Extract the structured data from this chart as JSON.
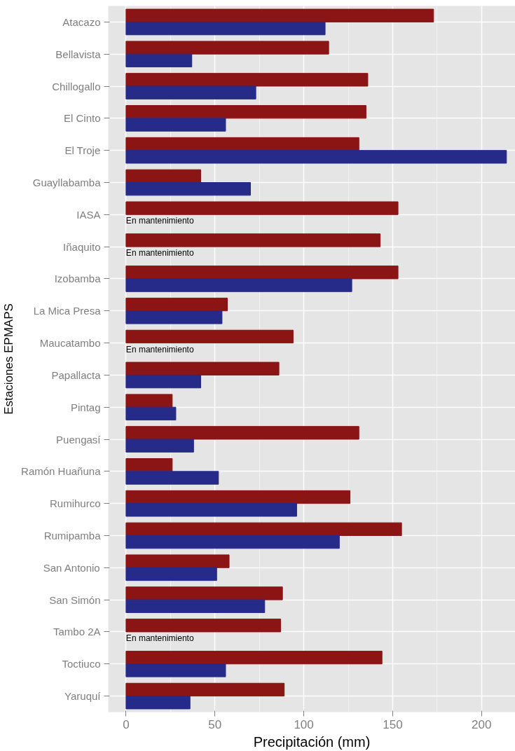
{
  "chart_data": {
    "type": "bar",
    "orientation": "horizontal",
    "xlabel": "Precipitación (mm)",
    "ylabel": "Estaciones EPMAPS",
    "categories": [
      "Atacazo",
      "Bellavista",
      "Chillogallo",
      "El Cinto",
      "El Troje",
      "Guayllabamba",
      "IASA",
      "Iñaquito",
      "Izobamba",
      "La Mica Presa",
      "Maucatambo",
      "Papallacta",
      "Pintag",
      "Puengasí",
      "Ramón Huañuna",
      "Rumihurco",
      "Rumipamba",
      "San Antonio",
      "San Simón",
      "Tambo 2A",
      "Toctiuco",
      "Yaruquí"
    ],
    "series": [
      {
        "color": "#8b1414",
        "values": [
          173,
          114,
          136,
          135,
          131,
          42,
          153,
          143,
          153,
          57,
          94,
          86,
          26,
          131,
          26,
          126,
          155,
          58,
          88,
          87,
          144,
          89
        ]
      },
      {
        "color": "#262a88",
        "values": [
          112,
          37,
          73,
          56,
          214,
          70,
          null,
          null,
          127,
          54,
          null,
          42,
          28,
          38,
          52,
          96,
          120,
          51,
          78,
          null,
          56,
          36
        ]
      }
    ],
    "xlim": [
      -10,
      219
    ],
    "xticks": [
      0,
      50,
      100,
      150,
      200
    ],
    "grid": true,
    "annotations": [
      {
        "text": "En mantenimiento",
        "y": "IASA"
      },
      {
        "text": "En mantenimiento",
        "y": "Iñaquito"
      },
      {
        "text": "En mantenimiento",
        "y": "Maucatambo"
      },
      {
        "text": "En mantenimiento",
        "y": "Tambo 2A"
      }
    ]
  }
}
